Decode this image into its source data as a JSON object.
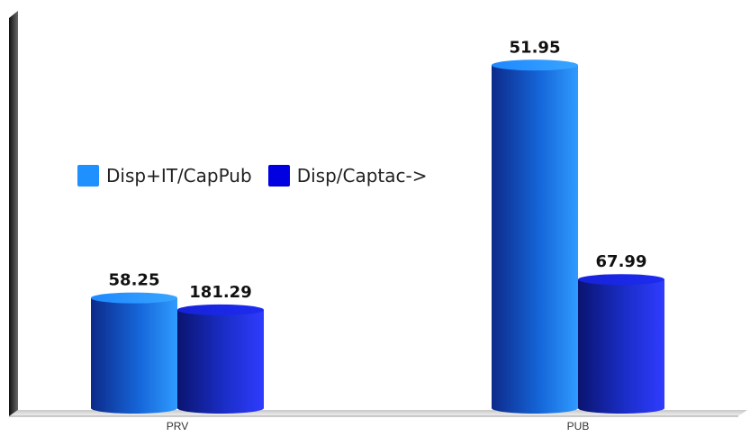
{
  "chart_data": {
    "type": "bar",
    "categories": [
      "PRV",
      "PUB"
    ],
    "series": [
      {
        "name": "Disp+IT/CapPub",
        "values": [
          58.25,
          181.29
        ],
        "color": "#1e90ff"
      },
      {
        "name": "Disp/Captac->",
        "values": [
          51.95,
          67.99
        ],
        "color": "#0000e0"
      }
    ],
    "value_labels": [
      "58.25",
      "181.29",
      "51.95",
      "67.99"
    ],
    "title": "",
    "xlabel": "",
    "ylabel": "",
    "ylim": [
      0,
      200
    ],
    "legend_position": "left-center",
    "grid": false
  }
}
